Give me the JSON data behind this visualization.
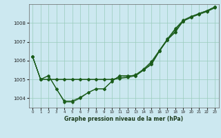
{
  "xlabel": "Graphe pression niveau de la mer (hPa)",
  "bg_color": "#cce8f0",
  "grid_color": "#99ccbb",
  "line_color": "#1a5c1a",
  "xlim": [
    -0.5,
    23.5
  ],
  "ylim": [
    1003.5,
    1009.0
  ],
  "yticks": [
    1004,
    1005,
    1006,
    1007,
    1008
  ],
  "xticks": [
    0,
    1,
    2,
    3,
    4,
    5,
    6,
    7,
    8,
    9,
    10,
    11,
    12,
    13,
    14,
    15,
    16,
    17,
    18,
    19,
    20,
    21,
    22,
    23
  ],
  "series": [
    [
      1006.2,
      1005.0,
      1005.2,
      1004.5,
      1003.8,
      1003.8,
      1004.0,
      1004.3,
      1004.5,
      1004.5,
      1004.9,
      1005.2,
      1005.2,
      1005.2,
      1005.5,
      1005.8,
      1006.5,
      1007.1,
      1007.5,
      1008.1,
      1008.3,
      1008.5,
      1008.65,
      1008.85
    ],
    [
      1006.2,
      1005.0,
      1005.0,
      1005.0,
      1005.0,
      1005.0,
      1005.0,
      1005.0,
      1005.0,
      1005.0,
      1005.0,
      1005.05,
      1005.1,
      1005.2,
      1005.5,
      1005.9,
      1006.5,
      1007.1,
      1007.65,
      1008.1,
      1008.3,
      1008.45,
      1008.6,
      1008.8
    ],
    [
      1006.2,
      1005.0,
      1005.0,
      1005.0,
      1005.0,
      1005.0,
      1005.0,
      1005.0,
      1005.0,
      1005.0,
      1005.0,
      1005.1,
      1005.15,
      1005.25,
      1005.55,
      1005.95,
      1006.55,
      1007.15,
      1007.7,
      1008.15,
      1008.35,
      1008.5,
      1008.65,
      1008.85
    ],
    [
      1006.2,
      1005.0,
      1005.2,
      1004.5,
      1003.85,
      1003.85,
      1004.05,
      1004.3,
      1004.5,
      1004.5,
      1004.9,
      1005.2,
      1005.2,
      1005.2,
      1005.5,
      1005.8,
      1006.5,
      1007.1,
      1007.55,
      1008.1,
      1008.3,
      1008.5,
      1008.65,
      1008.85
    ]
  ]
}
